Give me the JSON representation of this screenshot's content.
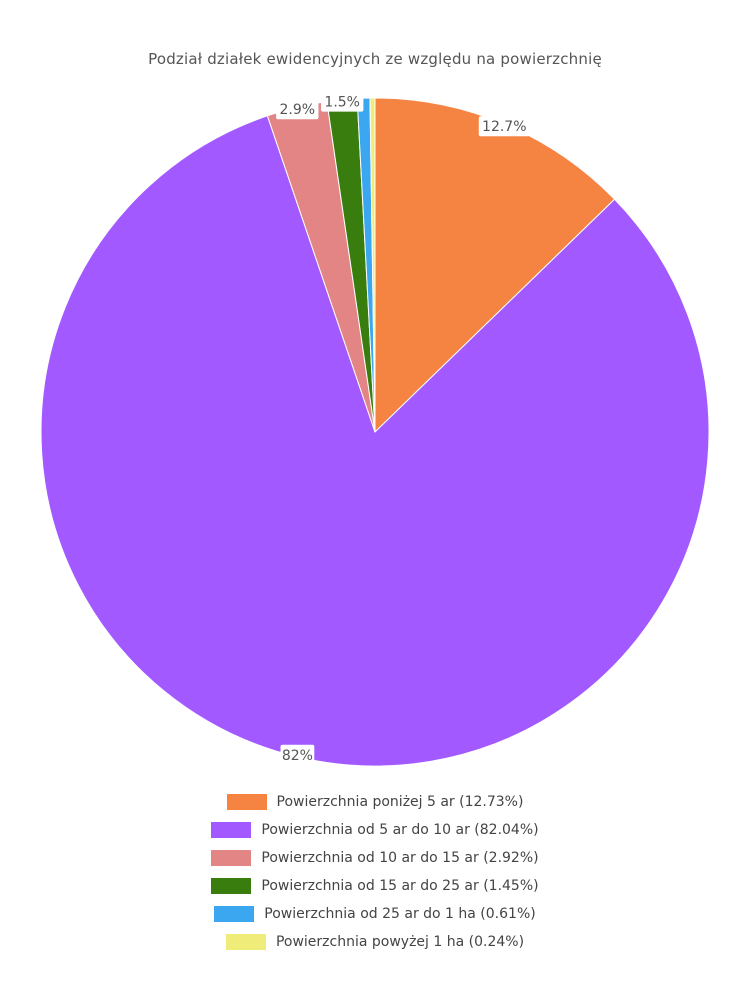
{
  "chart_data": {
    "type": "pie",
    "title": "Podział działek ewidencyjnych ze względu na powierzchnię",
    "categories": [
      "Powierzchnia poniżej 5 ar",
      "Powierzchnia od 5 ar do 10 ar",
      "Powierzchnia od 10 ar do 15 ar",
      "Powierzchnia od 15 ar do 25 ar",
      "Powierzchnia od 25 ar do 1 ha",
      "Powierzchnia powyżej 1 ha"
    ],
    "values": [
      12.73,
      82.04,
      2.92,
      1.45,
      0.61,
      0.24
    ],
    "slice_labels": [
      "12.7%",
      "82%",
      "2.9%",
      "1.5%",
      "",
      ""
    ],
    "legend_labels": [
      "Powierzchnia poniżej 5 ar (12.73%)",
      "Powierzchnia od 5 ar do 10 ar (82.04%)",
      "Powierzchnia od 10 ar do 15 ar (2.92%)",
      "Powierzchnia od 15 ar do 25 ar (1.45%)",
      "Powierzchnia od 25 ar do 1 ha (0.61%)",
      "Powierzchnia powyżej 1 ha (0.24%)"
    ],
    "colors": [
      "#f58442",
      "#a259ff",
      "#e38585",
      "#3a7d0f",
      "#3aa7f0",
      "#f0ec7a"
    ],
    "legend_position": "bottom"
  }
}
